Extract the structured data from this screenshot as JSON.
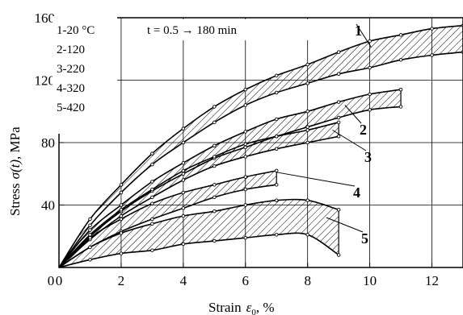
{
  "chart_data": {
    "type": "line",
    "xlabel_text": "Strain",
    "xlabel_symbol": "ε",
    "xlabel_sub": "0",
    "xlabel_unit": ", %",
    "ylabel_text": "Stress",
    "ylabel_symbol": "σ(t)",
    "ylabel_unit": ", MPa",
    "xlim": [
      0,
      13
    ],
    "ylim": [
      0,
      160
    ],
    "x_ticks": [
      0,
      2,
      4,
      6,
      8,
      10,
      12
    ],
    "y_ticks": [
      40,
      80,
      120,
      160
    ],
    "x_tick_labels": [
      "0",
      "2",
      "4",
      "6",
      "8",
      "10",
      "12"
    ],
    "y_tick_labels": [
      "40",
      "80",
      "120",
      "160"
    ],
    "grid": true,
    "legend": {
      "placement": "top-left",
      "entries": [
        "1-20 °C",
        "2-120",
        "3-220",
        "4-320",
        "5-420"
      ],
      "time_note": "t = 0.5 → 180 min"
    },
    "series": [
      {
        "name": "1",
        "upper": [
          [
            0,
            0
          ],
          [
            1,
            31
          ],
          [
            2,
            53
          ],
          [
            3,
            73
          ],
          [
            4,
            89
          ],
          [
            5,
            103
          ],
          [
            6,
            114
          ],
          [
            7,
            123
          ],
          [
            8,
            130
          ],
          [
            9,
            138
          ],
          [
            10,
            145
          ],
          [
            11,
            149
          ],
          [
            12,
            153
          ],
          [
            13,
            155
          ]
        ],
        "lower": [
          [
            0,
            0
          ],
          [
            1,
            27
          ],
          [
            2,
            48
          ],
          [
            3,
            66
          ],
          [
            4,
            80
          ],
          [
            5,
            93
          ],
          [
            6,
            104
          ],
          [
            7,
            112
          ],
          [
            8,
            118
          ],
          [
            9,
            124
          ],
          [
            10,
            128
          ],
          [
            11,
            133
          ],
          [
            12,
            136
          ],
          [
            13,
            138
          ]
        ]
      },
      {
        "name": "2",
        "upper": [
          [
            0,
            0
          ],
          [
            1,
            24
          ],
          [
            2,
            40
          ],
          [
            3,
            55
          ],
          [
            4,
            67
          ],
          [
            5,
            78
          ],
          [
            6,
            87
          ],
          [
            7,
            95
          ],
          [
            8,
            100
          ],
          [
            9,
            106
          ],
          [
            10,
            111
          ],
          [
            11,
            114
          ]
        ],
        "lower": [
          [
            0,
            0
          ],
          [
            1,
            20
          ],
          [
            2,
            36
          ],
          [
            3,
            49
          ],
          [
            4,
            60
          ],
          [
            5,
            70
          ],
          [
            6,
            77
          ],
          [
            7,
            84
          ],
          [
            8,
            90
          ],
          [
            9,
            96
          ],
          [
            10,
            101
          ],
          [
            11,
            103
          ]
        ]
      },
      {
        "name": "3",
        "upper": [
          [
            0,
            0
          ],
          [
            1,
            21
          ],
          [
            2,
            37
          ],
          [
            3,
            50
          ],
          [
            4,
            62
          ],
          [
            5,
            71
          ],
          [
            6,
            79
          ],
          [
            7,
            84
          ],
          [
            8,
            88
          ],
          [
            9,
            93
          ]
        ],
        "lower": [
          [
            0,
            0
          ],
          [
            1,
            18
          ],
          [
            2,
            33
          ],
          [
            3,
            45
          ],
          [
            4,
            56
          ],
          [
            5,
            65
          ],
          [
            6,
            71
          ],
          [
            7,
            76
          ],
          [
            8,
            80
          ],
          [
            9,
            84
          ]
        ]
      },
      {
        "name": "4",
        "upper": [
          [
            0,
            0
          ],
          [
            1,
            19
          ],
          [
            2,
            31
          ],
          [
            3,
            41
          ],
          [
            4,
            48
          ],
          [
            5,
            53
          ],
          [
            6,
            58
          ],
          [
            7,
            62
          ]
        ],
        "lower": [
          [
            0,
            0
          ],
          [
            1,
            13
          ],
          [
            2,
            23
          ],
          [
            3,
            31
          ],
          [
            4,
            38
          ],
          [
            5,
            45
          ],
          [
            6,
            50
          ],
          [
            7,
            53
          ]
        ]
      },
      {
        "name": "5",
        "upper": [
          [
            0,
            0
          ],
          [
            1,
            13
          ],
          [
            2,
            22
          ],
          [
            3,
            28
          ],
          [
            4,
            33
          ],
          [
            5,
            36
          ],
          [
            6,
            40
          ],
          [
            7,
            43
          ],
          [
            8,
            43
          ],
          [
            9,
            37
          ]
        ],
        "lower": [
          [
            0,
            0
          ],
          [
            1,
            5
          ],
          [
            2,
            9
          ],
          [
            3,
            11
          ],
          [
            4,
            15
          ],
          [
            5,
            17
          ],
          [
            6,
            19
          ],
          [
            7,
            21
          ],
          [
            8,
            21
          ],
          [
            9,
            8
          ]
        ]
      }
    ],
    "annotation_labels": [
      "1",
      "2",
      "3",
      "4",
      "5"
    ]
  }
}
